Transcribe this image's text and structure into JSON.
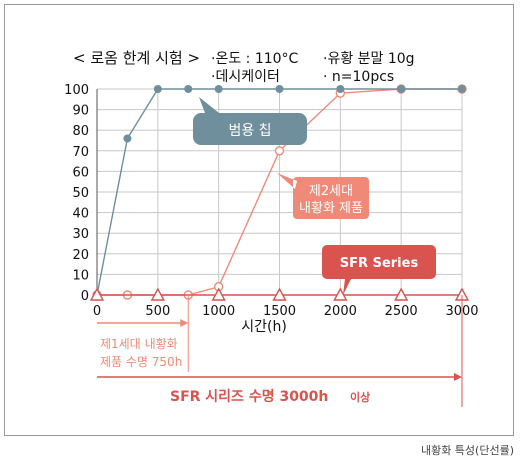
{
  "chart_data": {
    "type": "line",
    "header": {
      "test_title": "< 로옴 한계 시험 >",
      "conditions": [
        "·온도 : 110°C",
        "·유황 분말 10g",
        "·데시케이터",
        "· n=10pcs"
      ]
    },
    "xlabel": "시간(h)",
    "x_ticks": [
      0,
      500,
      1000,
      1500,
      2000,
      2500,
      3000
    ],
    "y_ticks": [
      0,
      10,
      20,
      30,
      40,
      50,
      60,
      70,
      80,
      90,
      100
    ],
    "xlim": [
      0,
      3000
    ],
    "ylim": [
      0,
      100
    ],
    "grid": true,
    "series": [
      {
        "name": "범용 칩",
        "color": "#6f8f9c",
        "marker": "circle",
        "points": [
          [
            0,
            0
          ],
          [
            250,
            76
          ],
          [
            500,
            100
          ],
          [
            750,
            100
          ],
          [
            1000,
            100
          ],
          [
            1500,
            100
          ],
          [
            2000,
            100
          ],
          [
            2500,
            100
          ],
          [
            3000,
            100
          ]
        ]
      },
      {
        "name": "제2세대 내황화 제품",
        "color": "#ef8a78",
        "marker": "circle-open",
        "points": [
          [
            0,
            0
          ],
          [
            250,
            0
          ],
          [
            750,
            0
          ],
          [
            1000,
            4
          ],
          [
            1500,
            70
          ],
          [
            2000,
            98
          ],
          [
            2500,
            100
          ],
          [
            3000,
            100
          ]
        ]
      },
      {
        "name": "SFR Series",
        "color": "#d9534f",
        "marker": "triangle-open",
        "points": [
          [
            0,
            0
          ],
          [
            500,
            0
          ],
          [
            1000,
            0
          ],
          [
            1500,
            0
          ],
          [
            2000,
            0
          ],
          [
            2500,
            0
          ],
          [
            3000,
            0
          ]
        ]
      }
    ],
    "callouts": {
      "generic": {
        "text": "범용 칩",
        "color": "#6f8f9c"
      },
      "gen2": {
        "lines": [
          "제2세대",
          "내황화 제품"
        ],
        "color": "#ef8a78"
      },
      "sfr": {
        "text": "SFR Series",
        "color": "#d9534f"
      }
    },
    "lifetimes": {
      "gen1": {
        "lines": [
          "제1세대 내황화",
          "제품 수명 750h"
        ],
        "end_x": 750,
        "color": "#ef8a78"
      },
      "sfr": {
        "text": "SFR 시리즈 수명 3000h",
        "suffix": "이상",
        "end_x": 3000,
        "color": "#d9534f"
      }
    }
  },
  "caption": "내황화 특성(단선률)"
}
